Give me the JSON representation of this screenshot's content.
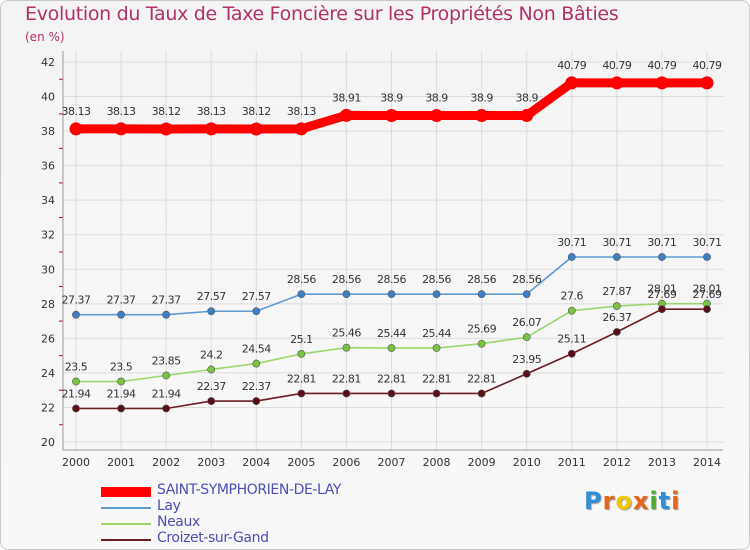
{
  "title": "Evolution du Taux de Taxe Foncière sur les Propriétés Non Bâties",
  "subtitle": "(en %)",
  "logo": {
    "text": "Proxiti",
    "letters": [
      "P",
      "r",
      "o",
      "x",
      "i",
      "t",
      "i"
    ],
    "colors": [
      "#2f8fd6",
      "#e8661c",
      "#f2c600",
      "#e8661c",
      "#4caa32",
      "#2f8fd6",
      "#e8661c"
    ]
  },
  "chart_data": {
    "type": "line",
    "title": "Evolution du Taux de Taxe Foncière sur les Propriétés Non Bâties",
    "ylabel": "(en %)",
    "xlabel": "",
    "ylim": [
      20,
      42
    ],
    "yticks": [
      20,
      22,
      24,
      26,
      28,
      30,
      32,
      34,
      36,
      38,
      40,
      42
    ],
    "categories": [
      "2000",
      "2001",
      "2002",
      "2003",
      "2004",
      "2005",
      "2006",
      "2007",
      "2008",
      "2009",
      "2010",
      "2011",
      "2012",
      "2013",
      "2014"
    ],
    "legend_position": "bottom-left",
    "series": [
      {
        "name": "SAINT-SYMPHORIEN-DE-LAY",
        "color": "#ff0000",
        "marker_color": "#ff0000",
        "emphasis": "thick",
        "values": [
          38.13,
          38.13,
          38.12,
          38.13,
          38.12,
          38.13,
          38.91,
          38.9,
          38.9,
          38.9,
          38.9,
          40.79,
          40.79,
          40.79,
          40.79
        ],
        "labels": [
          "38.13",
          "38.13",
          "38.12",
          "38.13",
          "38.12",
          "38.13",
          "38.91",
          "38.9",
          "38.9",
          "38.9",
          "38.9",
          "40.79",
          "40.79",
          "40.79",
          "40.79"
        ]
      },
      {
        "name": "Lay",
        "color": "#5f9bd2",
        "marker_color": "#3d7fc4",
        "emphasis": "normal",
        "values": [
          27.37,
          27.37,
          27.37,
          27.57,
          27.57,
          28.56,
          28.56,
          28.56,
          28.56,
          28.56,
          28.56,
          30.71,
          30.71,
          30.71,
          30.71
        ],
        "labels": [
          "27.37",
          "27.37",
          "27.37",
          "27.57",
          "27.57",
          "28.56",
          "28.56",
          "28.56",
          "28.56",
          "28.56",
          "28.56",
          "30.71",
          "30.71",
          "30.71",
          "30.71"
        ]
      },
      {
        "name": "Neaux",
        "color": "#9ad66c",
        "marker_color": "#7cc242",
        "emphasis": "normal",
        "values": [
          23.5,
          23.5,
          23.85,
          24.2,
          24.54,
          25.1,
          25.46,
          25.44,
          25.44,
          25.69,
          26.07,
          27.6,
          27.87,
          28.01,
          28.01
        ],
        "labels": [
          "23.5",
          "23.5",
          "23.85",
          "24.2",
          "24.54",
          "25.1",
          "25.46",
          "25.44",
          "25.44",
          "25.69",
          "26.07",
          "27.6",
          "27.87",
          "28.01",
          "28.01"
        ]
      },
      {
        "name": "Croizet-sur-Gand",
        "color": "#6b1c25",
        "marker_color": "#5a0f18",
        "emphasis": "normal",
        "values": [
          21.94,
          21.94,
          21.94,
          22.37,
          22.37,
          22.81,
          22.81,
          22.81,
          22.81,
          22.81,
          23.95,
          25.11,
          26.37,
          27.69,
          27.69
        ],
        "labels": [
          "21.94",
          "21.94",
          "21.94",
          "22.37",
          "22.37",
          "22.81",
          "22.81",
          "22.81",
          "22.81",
          "22.81",
          "23.95",
          "25.11",
          "26.37",
          "27.69",
          "27.69"
        ]
      }
    ]
  }
}
